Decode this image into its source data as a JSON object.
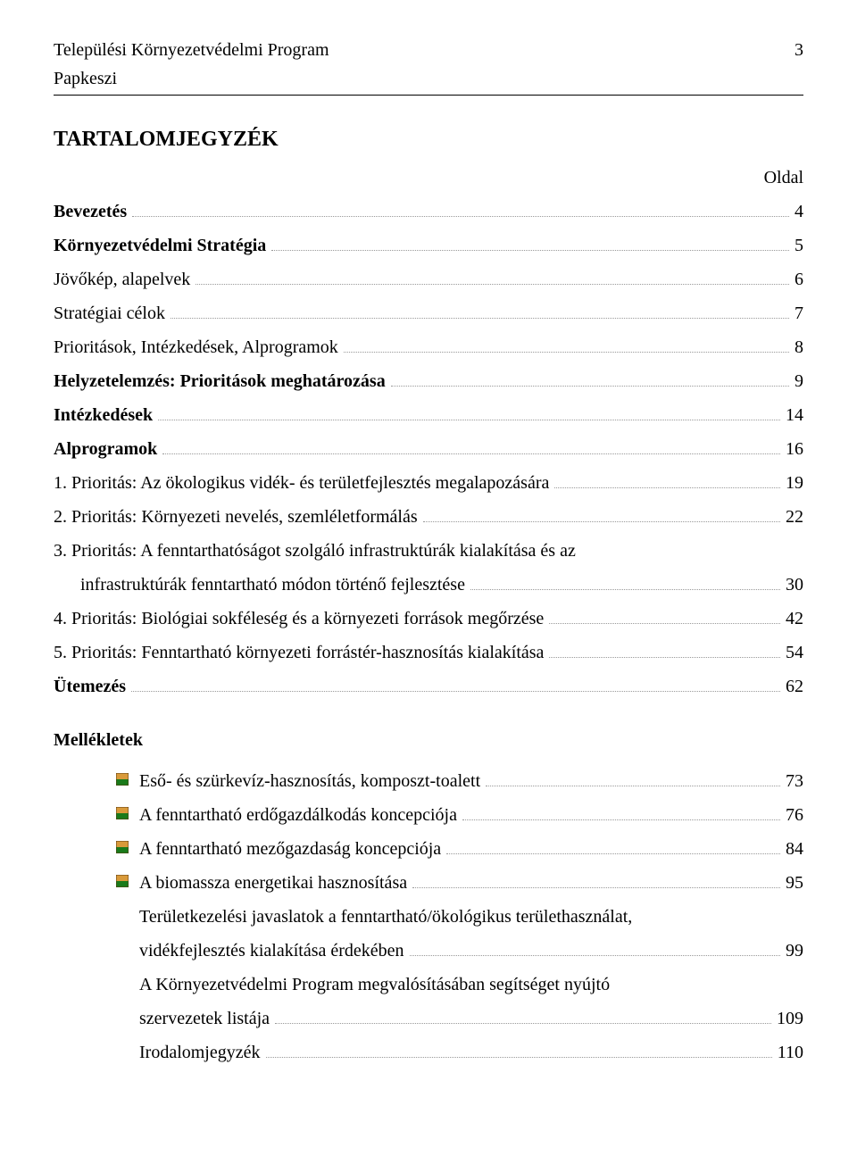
{
  "header": {
    "title": "Települési Környezetvédelmi Program",
    "subtitle": "Papkeszi",
    "page_number": "3"
  },
  "main_title": "TARTALOMJEGYZÉK",
  "column_label": "Oldal",
  "toc": [
    {
      "label": "Bevezetés",
      "page": "4",
      "bold": true
    },
    {
      "label": "Környezetvédelmi Stratégia",
      "page": "5",
      "bold": true
    },
    {
      "label": "Jövőkép, alapelvek",
      "page": "6",
      "bold": false
    },
    {
      "label": "Stratégiai célok",
      "page": "7",
      "bold": false
    },
    {
      "label": "Prioritások, Intézkedések, Alprogramok",
      "page": "8",
      "bold": false
    },
    {
      "label": "Helyzetelemzés: Prioritások meghatározása",
      "page": "9",
      "bold": true
    },
    {
      "label": "Intézkedések",
      "page": "14",
      "bold": true
    },
    {
      "label": "Alprogramok",
      "page": "16",
      "bold": true
    },
    {
      "label": "1. Prioritás: Az ökologikus vidék- és területfejlesztés megalapozására",
      "page": "19",
      "bold": false
    },
    {
      "label": "2. Prioritás: Környezeti nevelés, szemléletformálás",
      "page": "22",
      "bold": false
    }
  ],
  "toc_multi_1": {
    "line1": "3. Prioritás: A fenntarthatóságot szolgáló infrastruktúrák kialakítása és az",
    "line2": "infrastruktúrák fenntartható módon történő fejlesztése",
    "page": "30"
  },
  "toc_after": [
    {
      "label": "4. Prioritás: Biológiai sokféleség és a környezeti források megőrzése",
      "page": "42",
      "bold": false
    },
    {
      "label": "5. Prioritás: Fenntartható környezeti forrástér-hasznosítás kialakítása",
      "page": "54",
      "bold": false
    },
    {
      "label": "Ütemezés",
      "page": "62",
      "bold": true
    }
  ],
  "mellekletek_title": "Mellékletek",
  "mellekletek": [
    {
      "label": "Eső- és szürkevíz-hasznosítás, komposzt-toalett",
      "page": "73",
      "bullet": true
    },
    {
      "label": "A fenntartható erdőgazdálkodás koncepciója",
      "page": "76",
      "bullet": true
    },
    {
      "label": "A fenntartható mezőgazdaság koncepciója",
      "page": "84",
      "bullet": true
    },
    {
      "label": "A biomassza energetikai hasznosítása",
      "page": "95",
      "bullet": true
    }
  ],
  "mellek_multi_1": {
    "line1": "Területkezelési javaslatok a fenntartható/ökológikus területhasználat,",
    "line2": "vidékfejlesztés kialakítása érdekében",
    "page": "99"
  },
  "mellek_multi_2": {
    "line1": "A Környezetvédelmi Program megvalósításában segítséget nyújtó",
    "line2": "szervezetek listája",
    "page": "109"
  },
  "mellek_last": {
    "label": "Irodalomjegyzék",
    "page": "110"
  },
  "bullet_colors": {
    "top": "#d99a3a",
    "bottom": "#1a7a1a"
  }
}
